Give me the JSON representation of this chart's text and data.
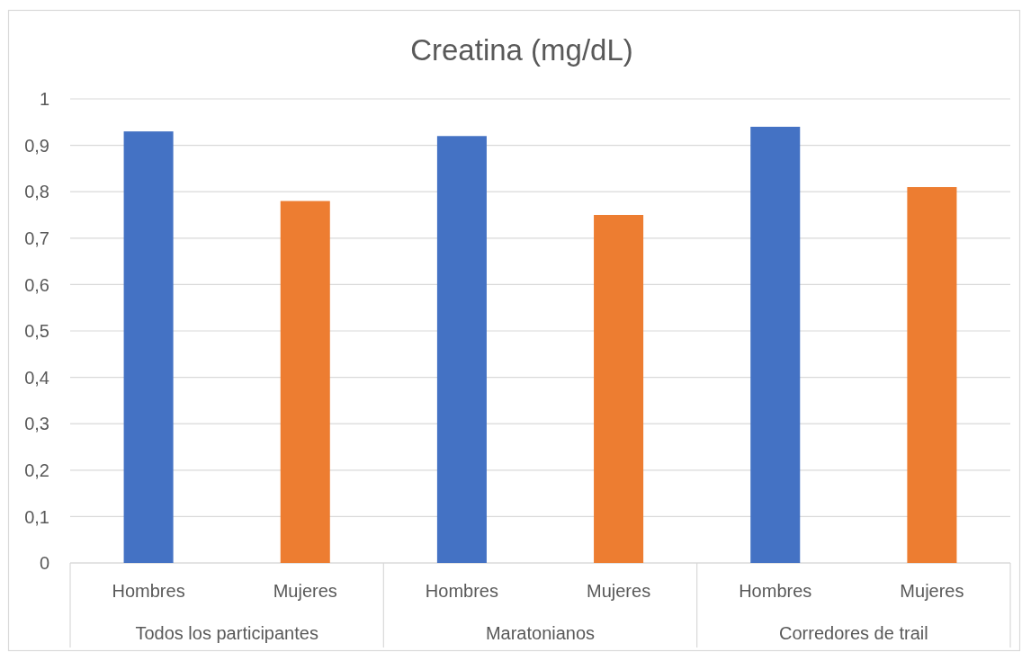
{
  "chart_data": {
    "type": "bar",
    "title": "Creatina (mg/dL)",
    "categories": [
      "Todos los participantes",
      "Maratonianos",
      "Corredores de trail"
    ],
    "series": [
      {
        "name": "Hombres",
        "color": "#4472c4",
        "values": [
          0.93,
          0.92,
          0.94
        ]
      },
      {
        "name": "Mujeres",
        "color": "#ed7d31",
        "values": [
          0.78,
          0.75,
          0.81
        ]
      }
    ],
    "ylim": [
      0,
      1
    ],
    "yticks": [
      0,
      {
        "value": 0.1,
        "label": "0,1"
      },
      {
        "value": 0.2,
        "label": "0,2"
      },
      {
        "value": 0.3,
        "label": "0,3"
      },
      {
        "value": 0.4,
        "label": "0,4"
      },
      {
        "value": 0.5,
        "label": "0,5"
      },
      {
        "value": 0.6,
        "label": "0,6"
      },
      {
        "value": 0.7,
        "label": "0,7"
      },
      {
        "value": 0.8,
        "label": "0,8"
      },
      {
        "value": 0.9,
        "label": "0,9"
      },
      1
    ],
    "grid": "y"
  }
}
